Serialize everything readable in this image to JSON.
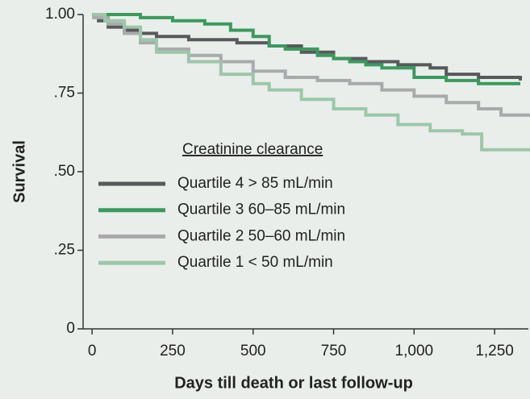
{
  "chart_data": {
    "type": "step",
    "xlabel": "Days till death or last follow-up",
    "ylabel": "Survival",
    "legend_title": "Creatinine clearance",
    "legend": "left",
    "xlim": [
      -28,
      1360
    ],
    "ylim": [
      0,
      1
    ],
    "xticks": [
      0,
      250,
      500,
      750,
      {
        "value": 1000,
        "label": "1,000"
      },
      {
        "value": 1250,
        "label": "1,250"
      }
    ],
    "yticks": [
      0,
      {
        "value": 0.25,
        "label": ".25"
      },
      {
        "value": 0.5,
        "label": ".50"
      },
      {
        "value": 0.75,
        "label": ".75"
      },
      {
        "value": 1,
        "label": "1.00"
      }
    ],
    "series": [
      {
        "name": "Quartile 4 > 85 mL/min",
        "color": "#58595b",
        "x": [
          0,
          20,
          50,
          100,
          150,
          200,
          300,
          450,
          550,
          650,
          750,
          850,
          950,
          1050,
          1100,
          1200,
          1330
        ],
        "values": [
          1.0,
          0.98,
          0.96,
          0.95,
          0.94,
          0.93,
          0.92,
          0.91,
          0.9,
          0.88,
          0.86,
          0.85,
          0.84,
          0.83,
          0.81,
          0.8,
          0.79
        ]
      },
      {
        "name": "Quartile 3 60–85 mL/min",
        "color": "#3a9a5e",
        "x": [
          0,
          150,
          250,
          350,
          430,
          500,
          550,
          600,
          700,
          750,
          800,
          850,
          900,
          1000,
          1100,
          1200,
          1330
        ],
        "values": [
          1.0,
          0.99,
          0.98,
          0.97,
          0.95,
          0.93,
          0.9,
          0.89,
          0.87,
          0.86,
          0.85,
          0.84,
          0.83,
          0.8,
          0.79,
          0.78,
          0.78
        ]
      },
      {
        "name": "Quartile 2 50–60 mL/min",
        "color": "#a9aaab",
        "x": [
          0,
          50,
          100,
          150,
          200,
          300,
          400,
          500,
          600,
          700,
          800,
          900,
          1000,
          1100,
          1200,
          1270,
          1360
        ],
        "values": [
          0.99,
          0.97,
          0.94,
          0.91,
          0.89,
          0.87,
          0.85,
          0.82,
          0.8,
          0.79,
          0.78,
          0.76,
          0.74,
          0.72,
          0.7,
          0.68,
          0.68
        ]
      },
      {
        "name": "Quartile 1 < 50 mL/min",
        "color": "#9dc6aa",
        "x": [
          0,
          40,
          100,
          150,
          200,
          300,
          400,
          500,
          550,
          650,
          750,
          850,
          950,
          1050,
          1150,
          1210,
          1360
        ],
        "values": [
          1.0,
          0.98,
          0.96,
          0.92,
          0.88,
          0.85,
          0.81,
          0.78,
          0.76,
          0.73,
          0.7,
          0.68,
          0.65,
          0.63,
          0.62,
          0.57,
          0.57
        ]
      }
    ]
  }
}
